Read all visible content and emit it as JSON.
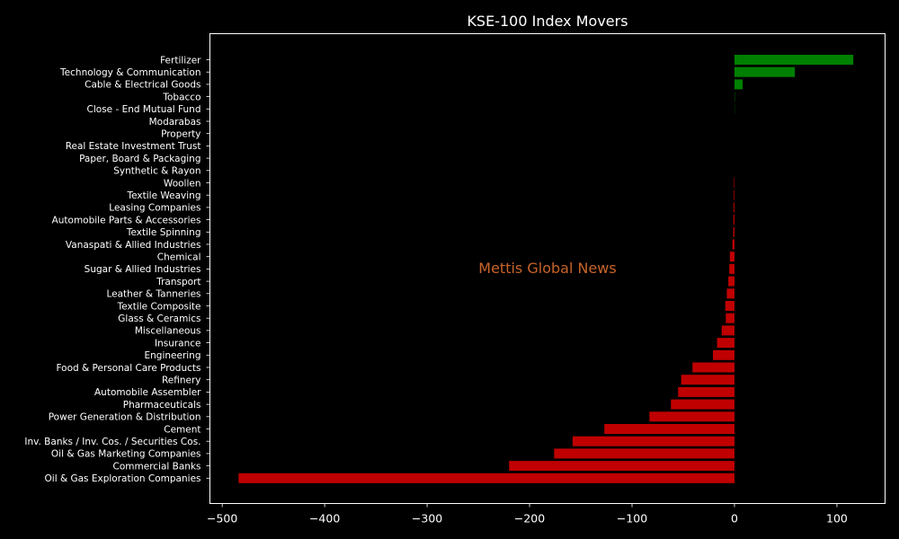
{
  "chart_data": {
    "type": "bar",
    "orientation": "horizontal",
    "title": "KSE-100 Index Movers",
    "xlabel": "",
    "ylabel": "",
    "xlim": [
      -512,
      147
    ],
    "xticks": [
      -500,
      -400,
      -300,
      -200,
      -100,
      0,
      100
    ],
    "xtick_labels": [
      "−500",
      "−400",
      "−300",
      "−200",
      "−100",
      "0",
      "100"
    ],
    "grid": false,
    "legend": "none",
    "colors": {
      "positive": "#008000",
      "negative": "#c00000",
      "background": "#000000",
      "axes": "#ffffff",
      "text": "#ffffff"
    },
    "categories": [
      "Fertilizer",
      "Technology & Communication",
      "Cable & Electrical Goods",
      "Tobacco",
      "Close - End Mutual Fund",
      "Modarabas",
      "Property",
      "Real Estate Investment Trust",
      "Paper, Board & Packaging",
      "Synthetic & Rayon",
      "Woollen",
      "Textile Weaving",
      "Leasing Companies",
      "Automobile Parts & Accessories",
      "Textile Spinning",
      "Vanaspati & Allied Industries",
      "Chemical",
      "Sugar & Allied Industries",
      "Transport",
      "Leather & Tanneries",
      "Textile Composite",
      "Glass & Ceramics",
      "Miscellaneous",
      "Insurance",
      "Engineering",
      "Food & Personal Care Products",
      "Refinery",
      "Automobile Assembler",
      "Pharmaceuticals",
      "Power Generation & Distribution",
      "Cement",
      "Inv. Banks / Inv. Cos. / Securities Cos.",
      "Oil & Gas Marketing Companies",
      "Commercial Banks",
      "Oil & Gas Exploration Companies"
    ],
    "values": [
      116,
      59,
      8,
      0.3,
      0.2,
      0,
      0,
      0,
      0,
      0,
      -0.5,
      -0.6,
      -0.8,
      -1,
      -1.2,
      -2,
      -4.5,
      -5,
      -6,
      -7.5,
      -9,
      -8.5,
      -12.5,
      -17,
      -21,
      -41,
      -52,
      -55,
      -62,
      -83,
      -127,
      -158,
      -176,
      -220,
      -484
    ],
    "annotations": [
      "Mettis Global News"
    ]
  }
}
